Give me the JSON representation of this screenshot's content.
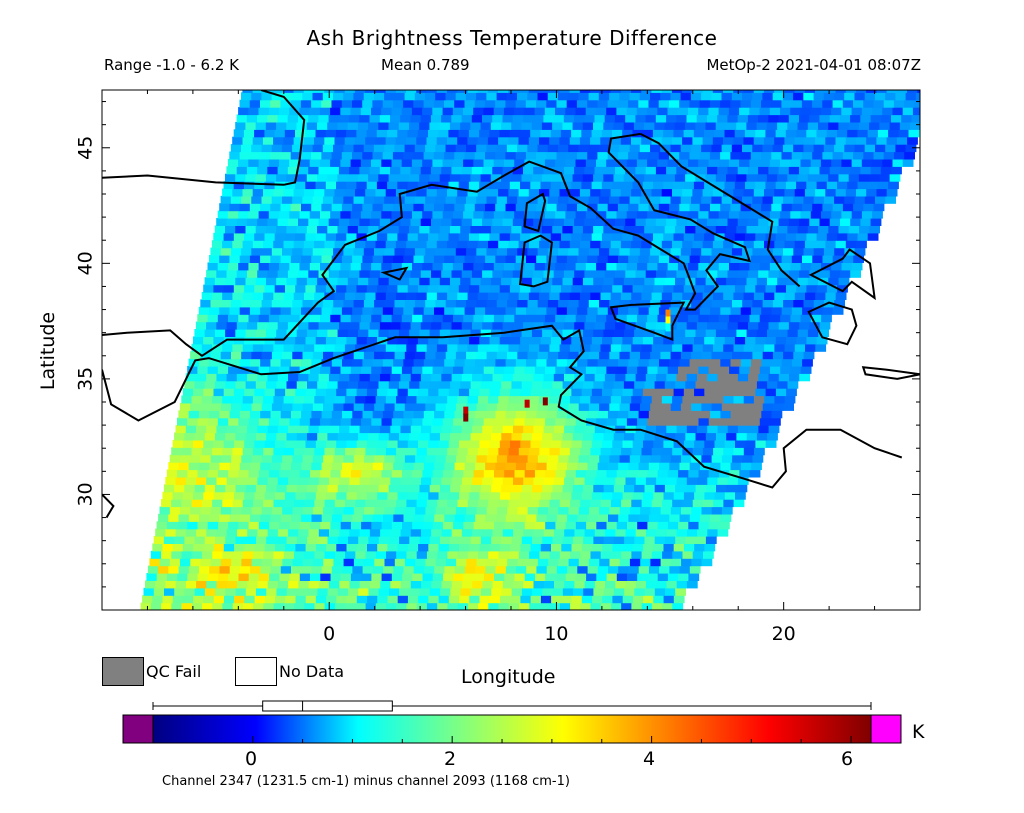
{
  "chart_data": {
    "type": "heatmap",
    "title": "Ash Brightness Temperature Difference",
    "range_text": "Range -1.0 - 6.2 K",
    "mean_text": "Mean 0.789",
    "satellite_time": "MetOp-2 2021-04-01 08:07Z",
    "xlabel": "Longitude",
    "ylabel": "Latitude",
    "xlim": [
      -10,
      26
    ],
    "ylim": [
      25,
      47.5
    ],
    "x_ticks": [
      0,
      10,
      20
    ],
    "y_ticks": [
      30,
      35,
      40,
      45
    ],
    "colorbar": {
      "ticks": [
        0,
        2,
        4,
        6
      ],
      "range": [
        -1.0,
        6.2
      ],
      "unit": "K",
      "stops": [
        "#000080",
        "#0000ff",
        "#00ffff",
        "#80ff80",
        "#ffff00",
        "#ff8000",
        "#ff0000",
        "#800000"
      ],
      "under_color": "#800080",
      "over_color": "#ff00ff",
      "boxplot": {
        "min": -1.0,
        "q1": 0.1,
        "median": 0.5,
        "q3": 1.4,
        "max": 6.2
      }
    },
    "legend": [
      {
        "label": "QC Fail",
        "color": "#808080"
      },
      {
        "label": "No Data",
        "color": "#ffffff"
      }
    ],
    "footnote": "Channel 2347 (1231.5 cm-1) minus channel 2093 (1168 cm-1)"
  }
}
